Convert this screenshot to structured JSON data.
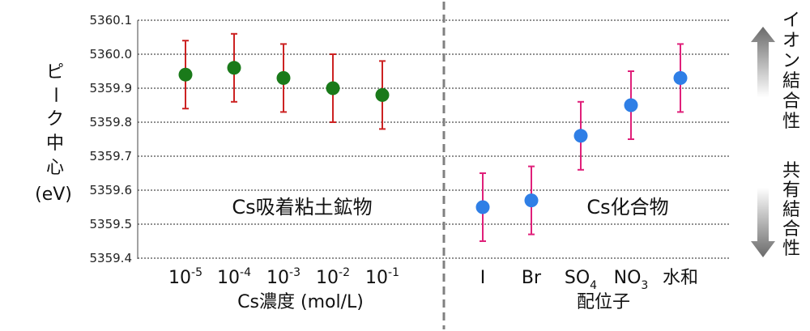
{
  "chart_data": {
    "type": "scatter",
    "y_axis": {
      "label_chars": [
        "ピ",
        "ー",
        "ク",
        "中",
        "心"
      ],
      "unit": "(eV)",
      "ylim": [
        5359.4,
        5360.1
      ],
      "ticks": [
        "5360.1",
        "5360.0",
        "5359.9",
        "5359.8",
        "5359.7",
        "5359.6",
        "5359.5",
        "5359.4"
      ],
      "grid": true
    },
    "left_panel": {
      "label": "Cs吸着粘土鉱物",
      "xlabel": "Cs濃度 (mol/L)",
      "categories": [
        {
          "base": "10",
          "sup": "-5"
        },
        {
          "base": "10",
          "sup": "-4"
        },
        {
          "base": "10",
          "sup": "-3"
        },
        {
          "base": "10",
          "sup": "-2"
        },
        {
          "base": "10",
          "sup": "-1"
        }
      ],
      "values": [
        5359.94,
        5359.96,
        5359.93,
        5359.9,
        5359.88
      ],
      "error": 0.1,
      "marker_color": "#1a7a1a",
      "error_color": "#cc2222"
    },
    "right_panel": {
      "label": "Cs化合物",
      "xlabel": "配位子",
      "categories": [
        {
          "base": "I",
          "sub": ""
        },
        {
          "base": "Br",
          "sub": ""
        },
        {
          "base": "SO",
          "sub": "4"
        },
        {
          "base": "NO",
          "sub": "3"
        },
        {
          "base": "水和",
          "sub": ""
        }
      ],
      "values": [
        5359.55,
        5359.57,
        5359.76,
        5359.85,
        5359.93
      ],
      "error": 0.1,
      "marker_color": "#2f7fe6",
      "error_color": "#e0207a"
    },
    "right_annotations": {
      "top_chars": [
        "イ",
        "オ",
        "ン",
        "結",
        "合",
        "性"
      ],
      "bottom_chars": [
        "共",
        "有",
        "結",
        "合",
        "性"
      ]
    },
    "divider_color": "#808080"
  }
}
